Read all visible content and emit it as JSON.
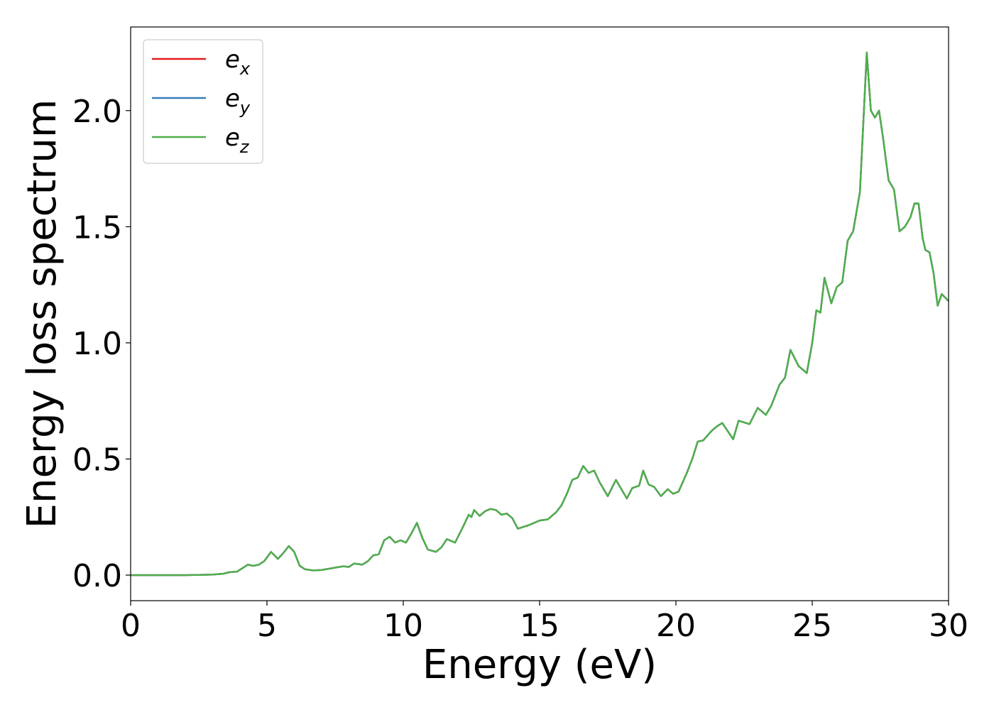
{
  "chart_data": {
    "type": "line",
    "xlabel": "Energy (eV)",
    "ylabel": "Energy loss spectrum",
    "xlim": [
      0,
      30
    ],
    "ylim": [
      -0.11,
      2.36
    ],
    "xticks": [
      {
        "value": 0,
        "label": "0"
      },
      {
        "value": 5,
        "label": "5"
      },
      {
        "value": 10,
        "label": "10"
      },
      {
        "value": 15,
        "label": "15"
      },
      {
        "value": 20,
        "label": "20"
      },
      {
        "value": 25,
        "label": "25"
      },
      {
        "value": 30,
        "label": "30"
      }
    ],
    "yticks": [
      {
        "value": 0.0,
        "label": "0.0"
      },
      {
        "value": 0.5,
        "label": "0.5"
      },
      {
        "value": 1.0,
        "label": "1.0"
      },
      {
        "value": 1.5,
        "label": "1.5"
      },
      {
        "value": 2.0,
        "label": "2.0"
      }
    ],
    "grid": false,
    "legend": {
      "position": "top-left",
      "entries": [
        {
          "base": "e",
          "sub": "x",
          "color": "#e31a1c"
        },
        {
          "base": "e",
          "sub": "y",
          "color": "#377eb8"
        },
        {
          "base": "e",
          "sub": "z",
          "color": "#4daf4a"
        }
      ]
    },
    "x": [
      0,
      1,
      2,
      3,
      3.4,
      3.6,
      3.9,
      4.1,
      4.3,
      4.5,
      4.7,
      4.9,
      5.15,
      5.4,
      5.6,
      5.8,
      6.0,
      6.2,
      6.4,
      6.7,
      7.0,
      7.4,
      7.8,
      8.0,
      8.2,
      8.5,
      8.7,
      8.9,
      9.1,
      9.3,
      9.5,
      9.7,
      9.9,
      10.1,
      10.3,
      10.5,
      10.7,
      10.9,
      11.2,
      11.4,
      11.6,
      11.9,
      12.2,
      12.4,
      12.5,
      12.6,
      12.8,
      13.0,
      13.2,
      13.4,
      13.6,
      13.8,
      14.0,
      14.2,
      14.6,
      15.0,
      15.3,
      15.6,
      15.8,
      16.0,
      16.2,
      16.4,
      16.6,
      16.8,
      17.0,
      17.2,
      17.5,
      17.8,
      18.0,
      18.2,
      18.4,
      18.65,
      18.8,
      19.0,
      19.2,
      19.45,
      19.7,
      19.9,
      20.1,
      20.4,
      20.6,
      20.8,
      21.0,
      21.3,
      21.5,
      21.7,
      21.9,
      22.1,
      22.3,
      22.7,
      23.0,
      23.3,
      23.5,
      23.8,
      24.0,
      24.2,
      24.5,
      24.8,
      25.0,
      25.15,
      25.3,
      25.45,
      25.7,
      25.9,
      26.1,
      26.3,
      26.5,
      26.75,
      27.0,
      27.15,
      27.3,
      27.45,
      27.6,
      27.8,
      28.0,
      28.2,
      28.4,
      28.6,
      28.75,
      28.9,
      29.05,
      29.15,
      29.3,
      29.45,
      29.6,
      29.75,
      30.0
    ],
    "series": [
      {
        "name": "e_x",
        "color": "#e31a1c",
        "values": [
          0,
          0,
          0,
          0.002,
          0.006,
          0.012,
          0.015,
          0.03,
          0.045,
          0.04,
          0.045,
          0.06,
          0.1,
          0.07,
          0.095,
          0.125,
          0.1,
          0.04,
          0.025,
          0.02,
          0.022,
          0.03,
          0.038,
          0.035,
          0.05,
          0.045,
          0.06,
          0.085,
          0.09,
          0.15,
          0.165,
          0.14,
          0.15,
          0.14,
          0.18,
          0.225,
          0.16,
          0.11,
          0.1,
          0.12,
          0.155,
          0.14,
          0.21,
          0.26,
          0.25,
          0.28,
          0.255,
          0.275,
          0.285,
          0.28,
          0.26,
          0.265,
          0.245,
          0.2,
          0.215,
          0.235,
          0.24,
          0.27,
          0.3,
          0.35,
          0.41,
          0.42,
          0.47,
          0.44,
          0.45,
          0.4,
          0.34,
          0.41,
          0.37,
          0.33,
          0.375,
          0.385,
          0.45,
          0.39,
          0.38,
          0.34,
          0.37,
          0.35,
          0.36,
          0.44,
          0.5,
          0.575,
          0.58,
          0.62,
          0.64,
          0.655,
          0.62,
          0.585,
          0.665,
          0.65,
          0.72,
          0.69,
          0.73,
          0.82,
          0.85,
          0.97,
          0.9,
          0.87,
          1.0,
          1.14,
          1.13,
          1.28,
          1.17,
          1.24,
          1.26,
          1.44,
          1.48,
          1.65,
          2.25,
          2.0,
          1.97,
          2.0,
          1.88,
          1.7,
          1.66,
          1.48,
          1.5,
          1.54,
          1.6,
          1.6,
          1.45,
          1.4,
          1.39,
          1.3,
          1.16,
          1.21,
          1.18
        ]
      },
      {
        "name": "e_y",
        "color": "#377eb8",
        "values": [
          0,
          0,
          0,
          0.002,
          0.006,
          0.012,
          0.015,
          0.03,
          0.045,
          0.04,
          0.045,
          0.06,
          0.1,
          0.07,
          0.095,
          0.125,
          0.1,
          0.04,
          0.025,
          0.02,
          0.022,
          0.03,
          0.038,
          0.035,
          0.05,
          0.045,
          0.06,
          0.085,
          0.09,
          0.15,
          0.165,
          0.14,
          0.15,
          0.14,
          0.18,
          0.225,
          0.16,
          0.11,
          0.1,
          0.12,
          0.155,
          0.14,
          0.21,
          0.26,
          0.25,
          0.28,
          0.255,
          0.275,
          0.285,
          0.28,
          0.26,
          0.265,
          0.245,
          0.2,
          0.215,
          0.235,
          0.24,
          0.27,
          0.3,
          0.35,
          0.41,
          0.42,
          0.47,
          0.44,
          0.45,
          0.4,
          0.34,
          0.41,
          0.37,
          0.33,
          0.375,
          0.385,
          0.45,
          0.39,
          0.38,
          0.34,
          0.37,
          0.35,
          0.36,
          0.44,
          0.5,
          0.575,
          0.58,
          0.62,
          0.64,
          0.655,
          0.62,
          0.585,
          0.665,
          0.65,
          0.72,
          0.69,
          0.73,
          0.82,
          0.85,
          0.97,
          0.9,
          0.87,
          1.0,
          1.14,
          1.13,
          1.28,
          1.17,
          1.24,
          1.26,
          1.44,
          1.48,
          1.65,
          2.25,
          2.0,
          1.97,
          2.0,
          1.88,
          1.7,
          1.66,
          1.48,
          1.5,
          1.54,
          1.6,
          1.6,
          1.45,
          1.4,
          1.39,
          1.3,
          1.16,
          1.21,
          1.18
        ]
      },
      {
        "name": "e_z",
        "color": "#4daf4a",
        "values": [
          0,
          0,
          0,
          0.002,
          0.006,
          0.012,
          0.015,
          0.03,
          0.045,
          0.04,
          0.045,
          0.06,
          0.1,
          0.07,
          0.095,
          0.125,
          0.1,
          0.04,
          0.025,
          0.02,
          0.022,
          0.03,
          0.038,
          0.035,
          0.05,
          0.045,
          0.06,
          0.085,
          0.09,
          0.15,
          0.165,
          0.14,
          0.15,
          0.14,
          0.18,
          0.225,
          0.16,
          0.11,
          0.1,
          0.12,
          0.155,
          0.14,
          0.21,
          0.26,
          0.25,
          0.28,
          0.255,
          0.275,
          0.285,
          0.28,
          0.26,
          0.265,
          0.245,
          0.2,
          0.215,
          0.235,
          0.24,
          0.27,
          0.3,
          0.35,
          0.41,
          0.42,
          0.47,
          0.44,
          0.45,
          0.4,
          0.34,
          0.41,
          0.37,
          0.33,
          0.375,
          0.385,
          0.45,
          0.39,
          0.38,
          0.34,
          0.37,
          0.35,
          0.36,
          0.44,
          0.5,
          0.575,
          0.58,
          0.62,
          0.64,
          0.655,
          0.62,
          0.585,
          0.665,
          0.65,
          0.72,
          0.69,
          0.73,
          0.82,
          0.85,
          0.97,
          0.9,
          0.87,
          1.0,
          1.14,
          1.13,
          1.28,
          1.17,
          1.24,
          1.26,
          1.44,
          1.48,
          1.65,
          2.25,
          2.0,
          1.97,
          2.0,
          1.88,
          1.7,
          1.66,
          1.48,
          1.5,
          1.54,
          1.6,
          1.6,
          1.45,
          1.4,
          1.39,
          1.3,
          1.16,
          1.21,
          1.18
        ]
      }
    ]
  }
}
